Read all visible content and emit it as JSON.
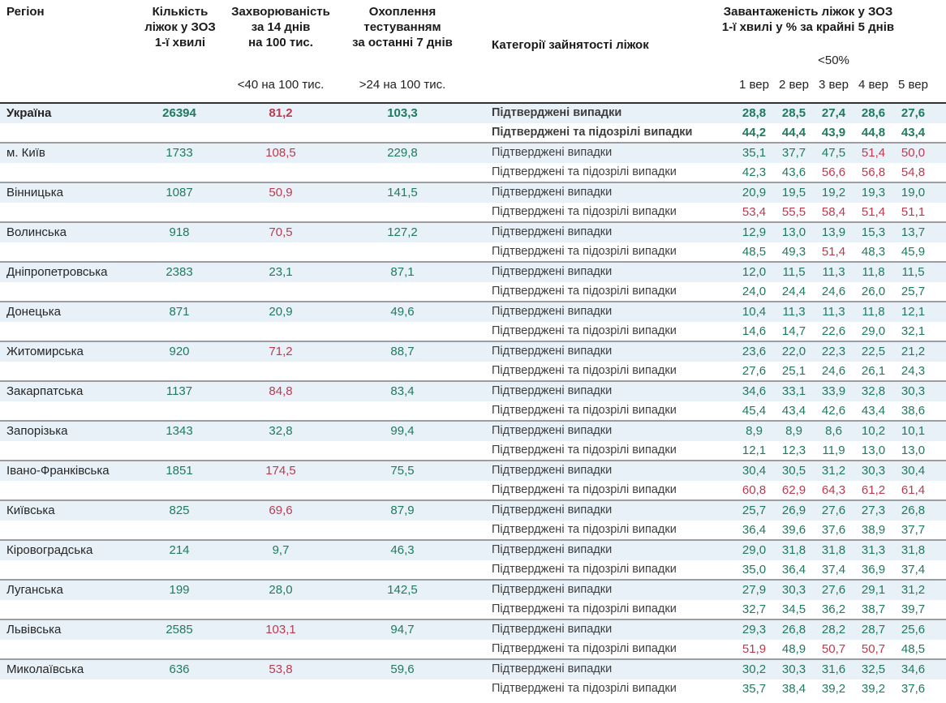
{
  "colors": {
    "green": "#1f7a5f",
    "red": "#bd3a4f",
    "row_band": "#e8f1f8",
    "separator": "#9b9da0",
    "header_rule": "#333333"
  },
  "thresholds": {
    "incidence_red_at": 40,
    "occupancy_red_at": 50
  },
  "header": {
    "region": "Регіон",
    "beds": "Кількість\nліжок у ЗОЗ\n1-ї хвилі",
    "incidence": "Захворюваність\nза 14 днів\nна 100 тис.",
    "testing": "Охоплення\nтестуванням\nза останні 7 днів",
    "category": "Категорії зайнятості ліжок",
    "occupancy": "Завантаженість ліжок у ЗОЗ\n1-ї хвилі у % за крайні 5 днів",
    "occupancy_threshold": "<50%",
    "incidence_threshold": "<40 на 100 тис.",
    "testing_threshold": ">24 на 100 тис.",
    "dates": [
      "1 вер",
      "2 вер",
      "3 вер",
      "4 вер",
      "5 вер"
    ]
  },
  "row_labels": {
    "confirmed": "Підтверджені випадки",
    "suspected": "Підтверджені та підозрілі випадки"
  },
  "regions": [
    {
      "name": "Україна",
      "bold": true,
      "beds": "26394",
      "incidence": "81,2",
      "testing": "103,3",
      "confirmed": [
        "28,8",
        "28,5",
        "27,4",
        "28,6",
        "27,6"
      ],
      "suspected": [
        "44,2",
        "44,4",
        "43,9",
        "44,8",
        "43,4"
      ]
    },
    {
      "name": "м. Київ",
      "bold": false,
      "beds": "1733",
      "incidence": "108,5",
      "testing": "229,8",
      "confirmed": [
        "35,1",
        "37,7",
        "47,5",
        "51,4",
        "50,0"
      ],
      "suspected": [
        "42,3",
        "43,6",
        "56,6",
        "56,8",
        "54,8"
      ]
    },
    {
      "name": "Вінницька",
      "bold": false,
      "beds": "1087",
      "incidence": "50,9",
      "testing": "141,5",
      "confirmed": [
        "20,9",
        "19,5",
        "19,2",
        "19,3",
        "19,0"
      ],
      "suspected": [
        "53,4",
        "55,5",
        "58,4",
        "51,4",
        "51,1"
      ]
    },
    {
      "name": "Волинська",
      "bold": false,
      "beds": "918",
      "incidence": "70,5",
      "testing": "127,2",
      "confirmed": [
        "12,9",
        "13,0",
        "13,9",
        "15,3",
        "13,7"
      ],
      "suspected": [
        "48,5",
        "49,3",
        "51,4",
        "48,3",
        "45,9"
      ]
    },
    {
      "name": "Дніпропетровська",
      "bold": false,
      "beds": "2383",
      "incidence": "23,1",
      "testing": "87,1",
      "confirmed": [
        "12,0",
        "11,5",
        "11,3",
        "11,8",
        "11,5"
      ],
      "suspected": [
        "24,0",
        "24,4",
        "24,6",
        "26,0",
        "25,7"
      ]
    },
    {
      "name": "Донецька",
      "bold": false,
      "beds": "871",
      "incidence": "20,9",
      "testing": "49,6",
      "confirmed": [
        "10,4",
        "11,3",
        "11,3",
        "11,8",
        "12,1"
      ],
      "suspected": [
        "14,6",
        "14,7",
        "22,6",
        "29,0",
        "32,1"
      ]
    },
    {
      "name": "Житомирська",
      "bold": false,
      "beds": "920",
      "incidence": "71,2",
      "testing": "88,7",
      "confirmed": [
        "23,6",
        "22,0",
        "22,3",
        "22,5",
        "21,2"
      ],
      "suspected": [
        "27,6",
        "25,1",
        "24,6",
        "26,1",
        "24,3"
      ]
    },
    {
      "name": "Закарпатська",
      "bold": false,
      "beds": "1137",
      "incidence": "84,8",
      "testing": "83,4",
      "confirmed": [
        "34,6",
        "33,1",
        "33,9",
        "32,8",
        "30,3"
      ],
      "suspected": [
        "45,4",
        "43,4",
        "42,6",
        "43,4",
        "38,6"
      ]
    },
    {
      "name": "Запорізька",
      "bold": false,
      "beds": "1343",
      "incidence": "32,8",
      "testing": "99,4",
      "confirmed": [
        "8,9",
        "8,9",
        "8,6",
        "10,2",
        "10,1"
      ],
      "suspected": [
        "12,1",
        "12,3",
        "11,9",
        "13,0",
        "13,0"
      ]
    },
    {
      "name": "Івано-Франківська",
      "bold": false,
      "beds": "1851",
      "incidence": "174,5",
      "testing": "75,5",
      "confirmed": [
        "30,4",
        "30,5",
        "31,2",
        "30,3",
        "30,4"
      ],
      "suspected": [
        "60,8",
        "62,9",
        "64,3",
        "61,2",
        "61,4"
      ]
    },
    {
      "name": "Київська",
      "bold": false,
      "beds": "825",
      "incidence": "69,6",
      "testing": "87,9",
      "confirmed": [
        "25,7",
        "26,9",
        "27,6",
        "27,3",
        "26,8"
      ],
      "suspected": [
        "36,4",
        "39,6",
        "37,6",
        "38,9",
        "37,7"
      ]
    },
    {
      "name": "Кіровоградська",
      "bold": false,
      "beds": "214",
      "incidence": "9,7",
      "testing": "46,3",
      "confirmed": [
        "29,0",
        "31,8",
        "31,8",
        "31,3",
        "31,8"
      ],
      "suspected": [
        "35,0",
        "36,4",
        "37,4",
        "36,9",
        "37,4"
      ]
    },
    {
      "name": "Луганська",
      "bold": false,
      "beds": "199",
      "incidence": "28,0",
      "testing": "142,5",
      "confirmed": [
        "27,9",
        "30,3",
        "27,6",
        "29,1",
        "31,2"
      ],
      "suspected": [
        "32,7",
        "34,5",
        "36,2",
        "38,7",
        "39,7"
      ]
    },
    {
      "name": "Львівська",
      "bold": false,
      "beds": "2585",
      "incidence": "103,1",
      "testing": "94,7",
      "confirmed": [
        "29,3",
        "26,8",
        "28,2",
        "28,7",
        "25,6"
      ],
      "suspected": [
        "51,9",
        "48,9",
        "50,7",
        "50,7",
        "48,5"
      ]
    },
    {
      "name": "Миколаївська",
      "bold": false,
      "beds": "636",
      "incidence": "53,8",
      "testing": "59,6",
      "confirmed": [
        "30,2",
        "30,3",
        "31,6",
        "32,5",
        "34,6"
      ],
      "suspected": [
        "35,7",
        "38,4",
        "39,2",
        "39,2",
        "37,6"
      ]
    }
  ]
}
